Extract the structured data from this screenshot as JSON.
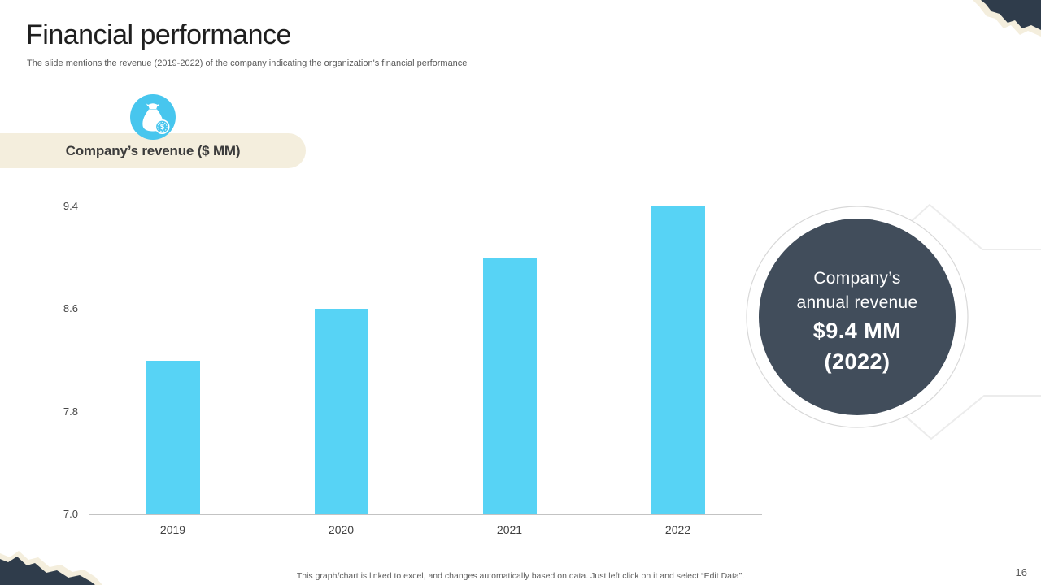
{
  "slide": {
    "title": "Financial performance",
    "subtitle": "The slide mentions the revenue (2019-2022) of the company indicating the organization's financial performance",
    "footer_note": "This graph/chart is linked to excel, and changes automatically based on data. Just left click on it and select “Edit Data”.",
    "page_number": "16"
  },
  "chart_label": {
    "text": "Company’s revenue ($ MM)",
    "icon": "money-bag-icon"
  },
  "chart_data": {
    "type": "bar",
    "title": "Company’s revenue ($ MM)",
    "categories": [
      "2019",
      "2020",
      "2021",
      "2022"
    ],
    "values": [
      8.2,
      8.6,
      9.0,
      9.4
    ],
    "yticks": [
      7.0,
      7.8,
      8.6,
      9.4
    ],
    "ylim": [
      7.0,
      9.4
    ],
    "xlabel": "",
    "ylabel": "",
    "grid": "off",
    "legend": "none",
    "bar_color": "#57d3f5"
  },
  "callout": {
    "line1": "Company’s",
    "line2": "annual revenue",
    "line3": "$9.4 MM",
    "line4": "(2022)"
  },
  "colors": {
    "accent_blue": "#57d3f5",
    "icon_blue": "#47c6ee",
    "dark_slate": "#414d5b",
    "torn_dark": "#2f3c4b",
    "cream": "#f4eedd",
    "axis_gray": "#c3c3c3",
    "faint_line": "#ececec"
  }
}
